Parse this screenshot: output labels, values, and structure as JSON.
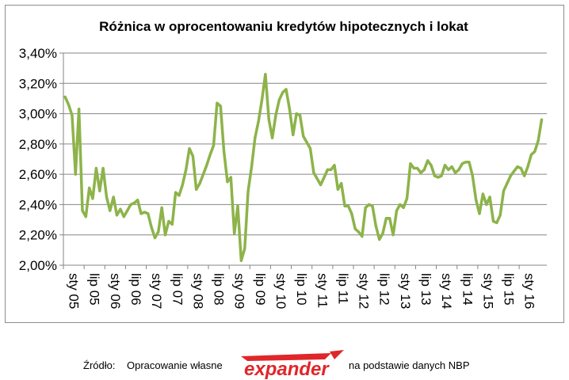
{
  "chart_data": {
    "type": "line",
    "title": "Różnica w oprocentowaniu kredytów hipotecznych i lokat",
    "xlabel": "",
    "ylabel": "",
    "ylim": [
      2.0,
      3.4
    ],
    "y_ticks": [
      "2,00%",
      "2,20%",
      "2,40%",
      "2,60%",
      "2,80%",
      "3,00%",
      "3,20%",
      "3,40%"
    ],
    "x_ticks": [
      "sty 05",
      "lip 05",
      "sty 06",
      "lip 06",
      "sty 07",
      "lip 07",
      "sty 08",
      "lip 08",
      "sty 09",
      "lip 09",
      "sty 10",
      "lip 10",
      "sty 11",
      "lip 11",
      "sty 12",
      "lip 12",
      "sty 13",
      "lip 13",
      "sty 14",
      "lip 14",
      "sty 15",
      "lip 15",
      "sty 16"
    ],
    "grid": true,
    "legend": "none",
    "line_color": "#8db34a",
    "series": [
      {
        "values": [
          3.11,
          3.06,
          2.99,
          2.6,
          3.03,
          2.36,
          2.32,
          2.51,
          2.44,
          2.64,
          2.49,
          2.64,
          2.45,
          2.36,
          2.45,
          2.33,
          2.37,
          2.32,
          2.36,
          2.4,
          2.41,
          2.43,
          2.34,
          2.35,
          2.34,
          2.25,
          2.18,
          2.22,
          2.38,
          2.2,
          2.29,
          2.27,
          2.48,
          2.46,
          2.53,
          2.63,
          2.77,
          2.72,
          2.5,
          2.54,
          2.6,
          2.66,
          2.73,
          2.79,
          3.07,
          3.05,
          2.75,
          2.55,
          2.58,
          2.21,
          2.39,
          2.03,
          2.11,
          2.49,
          2.65,
          2.84,
          2.95,
          3.09,
          3.26,
          2.96,
          2.84,
          2.99,
          3.09,
          3.14,
          3.16,
          3.03,
          2.86,
          3.0,
          2.99,
          2.85,
          2.81,
          2.77,
          2.61,
          2.57,
          2.53,
          2.58,
          2.63,
          2.63,
          2.66,
          2.5,
          2.54,
          2.39,
          2.39,
          2.34,
          2.24,
          2.22,
          2.19,
          2.38,
          2.4,
          2.39,
          2.26,
          2.17,
          2.21,
          2.31,
          2.31,
          2.2,
          2.36,
          2.4,
          2.38,
          2.44,
          2.67,
          2.64,
          2.64,
          2.61,
          2.63,
          2.69,
          2.66,
          2.59,
          2.58,
          2.59,
          2.66,
          2.63,
          2.65,
          2.61,
          2.63,
          2.67,
          2.68,
          2.68,
          2.59,
          2.43,
          2.34,
          2.47,
          2.4,
          2.45,
          2.29,
          2.28,
          2.33,
          2.49,
          2.54,
          2.59,
          2.62,
          2.65,
          2.64,
          2.59,
          2.65,
          2.73,
          2.75,
          2.82,
          2.96
        ]
      }
    ]
  },
  "footer": {
    "source_label": "Źródło:",
    "source_text": "Opracowanie własne",
    "logo_text": "expander",
    "source_suffix": "na podstawie  danych NBP"
  }
}
